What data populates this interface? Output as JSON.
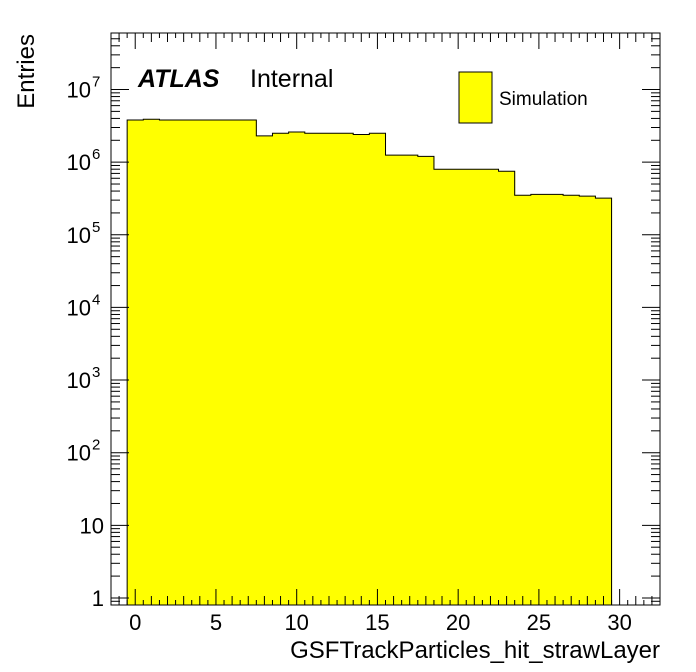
{
  "chart_data": {
    "type": "bar",
    "histogram": true,
    "x_label": "GSFTrackParticles_hit_strawLayer",
    "y_label": "Entries",
    "x_range": [
      -1.5,
      32.5
    ],
    "y_range": [
      0.8,
      60000000
    ],
    "y_scale": "log",
    "x_ticks": [
      0,
      5,
      10,
      15,
      20,
      25,
      30
    ],
    "x_tick_labels": [
      "0",
      "5",
      "10",
      "15",
      "20",
      "25",
      "30"
    ],
    "y_ticks": [
      {
        "base": "1",
        "exp": ""
      },
      {
        "base": "10",
        "exp": ""
      },
      {
        "base": "10",
        "exp": "2"
      },
      {
        "base": "10",
        "exp": "3"
      },
      {
        "base": "10",
        "exp": "4"
      },
      {
        "base": "10",
        "exp": "5"
      },
      {
        "base": "10",
        "exp": "6"
      },
      {
        "base": "10",
        "exp": "7"
      }
    ],
    "y_tick_values": [
      1,
      10,
      100,
      1000,
      10000,
      100000,
      1000000,
      10000000
    ],
    "atlas_label": "ATLAS",
    "status_label": "Internal",
    "legend": {
      "position": "top-right",
      "entries": [
        {
          "label": "Simulation",
          "color": "#ffff00"
        }
      ]
    },
    "fill_color": "#ffff00",
    "line_color": "#000000",
    "bin_low_edges": [
      -0.5,
      0.5,
      1.5,
      2.5,
      3.5,
      4.5,
      5.5,
      6.5,
      7.5,
      8.5,
      9.5,
      10.5,
      11.5,
      12.5,
      13.5,
      14.5,
      15.5,
      16.5,
      17.5,
      18.5,
      19.5,
      20.5,
      21.5,
      22.5,
      23.5,
      24.5,
      25.5,
      26.5,
      27.5,
      28.5
    ],
    "bin_width": 1,
    "values": [
      3800000,
      3900000,
      3800000,
      3800000,
      3800000,
      3800000,
      3800000,
      3800000,
      2300000,
      2500000,
      2600000,
      2500000,
      2500000,
      2500000,
      2400000,
      2500000,
      1250000,
      1250000,
      1200000,
      800000,
      800000,
      800000,
      800000,
      750000,
      350000,
      360000,
      360000,
      350000,
      340000,
      320000
    ]
  }
}
